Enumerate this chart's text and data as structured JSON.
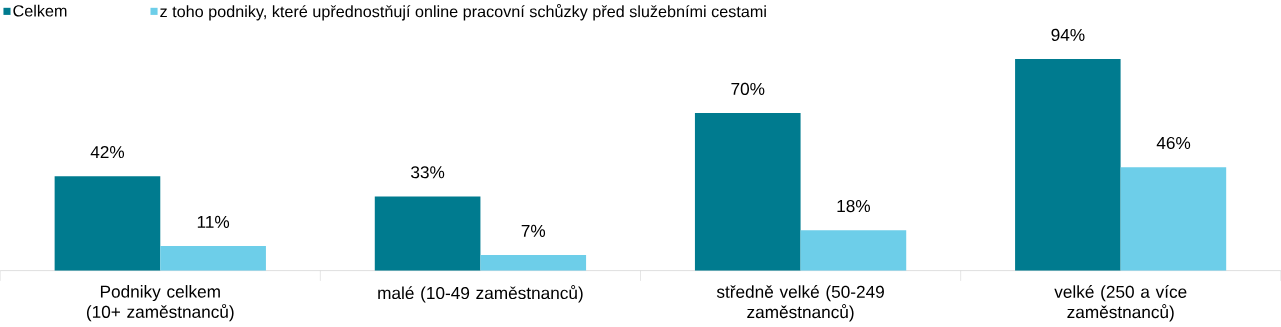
{
  "chart_data": {
    "type": "bar",
    "categories": [
      "Podniky celkem (10+ zaměstnanců)",
      "malé (10-49 zaměstnanců)",
      "středně velké (50-249 zaměstnanců)",
      "velké (250 a více zaměstnanců)"
    ],
    "series": [
      {
        "name": "Celkem",
        "color": "#007b8f",
        "values": [
          42,
          33,
          70,
          94
        ],
        "value_labels": [
          "42%",
          "33%",
          "70%",
          "94%"
        ]
      },
      {
        "name": "z toho podniky, které upřednostňují online pracovní schůzky před služebními cestami",
        "color": "#6dcee9",
        "values": [
          11,
          7,
          18,
          46
        ],
        "value_labels": [
          "11%",
          "7%",
          "18%",
          "46%"
        ]
      }
    ],
    "legend": "top left"
  }
}
